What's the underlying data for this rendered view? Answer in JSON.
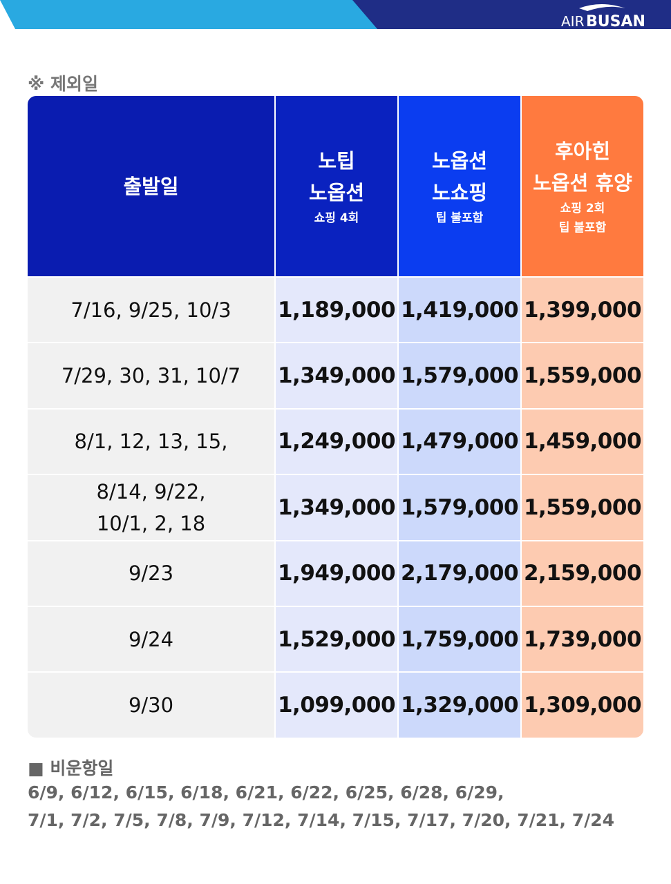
{
  "logo": {
    "light": "AIR",
    "bold": "BUSAN"
  },
  "excluded_label": "※ 제외일",
  "table": {
    "header": [
      {
        "title": [
          "출발일"
        ],
        "sub": []
      },
      {
        "title": [
          "노팁",
          "노옵션"
        ],
        "sub": [
          "쇼핑 4회"
        ]
      },
      {
        "title": [
          "노옵션",
          "노쇼핑"
        ],
        "sub": [
          "팁 불포함"
        ]
      },
      {
        "title": [
          "후아힌",
          "노옵션 휴양"
        ],
        "sub": [
          "쇼핑 2회",
          "팁 불포함"
        ]
      }
    ],
    "rows": [
      {
        "dates": [
          "7/16, 9/25, 10/3"
        ],
        "prices": [
          "1,189,000",
          "1,419,000",
          "1,399,000"
        ]
      },
      {
        "dates": [
          "7/29, 30, 31, 10/7"
        ],
        "prices": [
          "1,349,000",
          "1,579,000",
          "1,559,000"
        ]
      },
      {
        "dates": [
          "8/1, 12, 13, 15,"
        ],
        "prices": [
          "1,249,000",
          "1,479,000",
          "1,459,000"
        ]
      },
      {
        "dates": [
          "8/14, 9/22,",
          "10/1, 2, 18"
        ],
        "prices": [
          "1,349,000",
          "1,579,000",
          "1,559,000"
        ]
      },
      {
        "dates": [
          "9/23"
        ],
        "prices": [
          "1,949,000",
          "2,179,000",
          "2,159,000"
        ]
      },
      {
        "dates": [
          "9/24"
        ],
        "prices": [
          "1,529,000",
          "1,759,000",
          "1,739,000"
        ]
      },
      {
        "dates": [
          "9/30"
        ],
        "prices": [
          "1,099,000",
          "1,329,000",
          "1,309,000"
        ]
      }
    ]
  },
  "non_operating": {
    "title": "■ 비운항일",
    "lines": [
      "6/9, 6/12, 6/15, 6/18, 6/21, 6/22, 6/25, 6/28, 6/29,",
      "7/1, 7/2, 7/5, 7/8, 7/9, 7/12, 7/14, 7/15, 7/17, 7/20, 7/21, 7/24"
    ]
  }
}
